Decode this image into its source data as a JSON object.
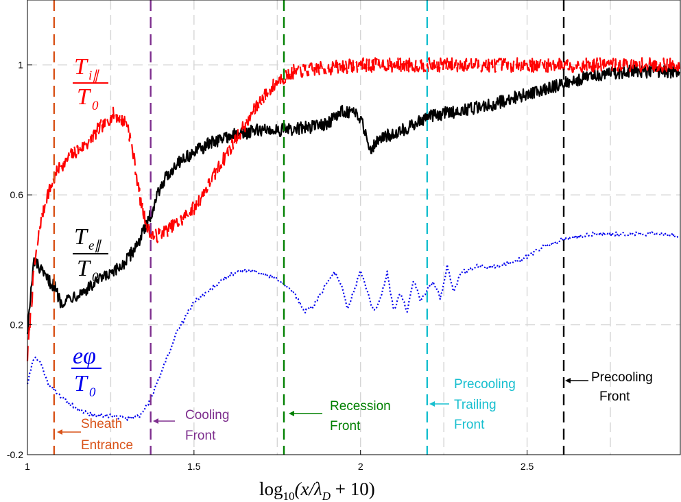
{
  "colors": {
    "ti": "#ff0000",
    "te": "#000000",
    "phi": "#0000ee",
    "sheath": "#d95319",
    "cooling": "#7e2f8e",
    "recession": "#008000",
    "trailing": "#17bfcf",
    "precooling": "#000000",
    "grid": "#d6d6d6"
  },
  "chart_data": {
    "type": "line",
    "xlabel": "log₁₀(x/λ_D + 10)",
    "ylabel": "",
    "xlim": [
      1,
      2.96
    ],
    "ylim": [
      -0.2,
      1.2
    ],
    "xticks": [
      {
        "value": 1,
        "label": "1"
      },
      {
        "value": 1.5,
        "label": "1.5"
      },
      {
        "value": 2,
        "label": "2"
      },
      {
        "value": 2.5,
        "label": "2.5"
      }
    ],
    "yticks": [
      {
        "value": -0.2,
        "label": "-0.2"
      },
      {
        "value": 0.2,
        "label": "0.2"
      },
      {
        "value": 0.6,
        "label": "0.6"
      },
      {
        "value": 1.0,
        "label": "1"
      }
    ],
    "grid": true,
    "series": [
      {
        "name": "T_i∥/T_0",
        "style": "dashed",
        "color": "#ff0000",
        "noise": 0.022,
        "x": [
          1.0,
          1.02,
          1.04,
          1.06,
          1.08,
          1.1,
          1.14,
          1.18,
          1.22,
          1.26,
          1.3,
          1.32,
          1.34,
          1.36,
          1.38,
          1.42,
          1.46,
          1.5,
          1.55,
          1.6,
          1.65,
          1.7,
          1.75,
          1.8,
          1.9,
          2.0,
          2.2,
          2.4,
          2.6,
          2.8,
          2.96
        ],
        "y": [
          0.1,
          0.37,
          0.52,
          0.6,
          0.65,
          0.69,
          0.73,
          0.76,
          0.81,
          0.85,
          0.82,
          0.71,
          0.58,
          0.5,
          0.47,
          0.49,
          0.52,
          0.56,
          0.64,
          0.73,
          0.81,
          0.89,
          0.95,
          0.98,
          0.99,
          1.0,
          1.0,
          1.0,
          1.0,
          1.0,
          1.0
        ]
      },
      {
        "name": "T_e∥/T_0",
        "style": "solid",
        "color": "#000000",
        "noise": 0.02,
        "x": [
          1.0,
          1.02,
          1.05,
          1.08,
          1.1,
          1.14,
          1.18,
          1.22,
          1.26,
          1.3,
          1.33,
          1.36,
          1.4,
          1.45,
          1.5,
          1.55,
          1.6,
          1.7,
          1.8,
          1.9,
          1.95,
          2.0,
          2.03,
          2.05,
          2.1,
          2.15,
          2.2,
          2.25,
          2.3,
          2.4,
          2.5,
          2.6,
          2.7,
          2.8,
          2.9,
          2.96
        ],
        "y": [
          0.18,
          0.4,
          0.35,
          0.32,
          0.27,
          0.29,
          0.31,
          0.34,
          0.36,
          0.4,
          0.45,
          0.51,
          0.63,
          0.7,
          0.73,
          0.76,
          0.78,
          0.8,
          0.8,
          0.82,
          0.86,
          0.84,
          0.74,
          0.77,
          0.79,
          0.81,
          0.84,
          0.85,
          0.86,
          0.88,
          0.91,
          0.94,
          0.97,
          0.98,
          0.98,
          0.98
        ]
      },
      {
        "name": "eφ/T_0",
        "style": "dotted",
        "color": "#0000ee",
        "noise": 0.006,
        "x": [
          1.0,
          1.02,
          1.04,
          1.06,
          1.1,
          1.15,
          1.2,
          1.25,
          1.3,
          1.34,
          1.37,
          1.4,
          1.45,
          1.5,
          1.55,
          1.6,
          1.65,
          1.7,
          1.75,
          1.8,
          1.83,
          1.86,
          1.9,
          1.92,
          1.94,
          1.96,
          1.98,
          2.0,
          2.02,
          2.04,
          2.06,
          2.08,
          2.1,
          2.12,
          2.14,
          2.16,
          2.18,
          2.2,
          2.22,
          2.24,
          2.26,
          2.28,
          2.3,
          2.35,
          2.4,
          2.45,
          2.5,
          2.55,
          2.6,
          2.7,
          2.8,
          2.9,
          2.96
        ],
        "y": [
          0.02,
          0.1,
          0.08,
          0.02,
          -0.02,
          -0.06,
          -0.08,
          -0.08,
          -0.09,
          -0.08,
          -0.03,
          0.05,
          0.18,
          0.27,
          0.31,
          0.35,
          0.37,
          0.36,
          0.34,
          0.3,
          0.24,
          0.26,
          0.33,
          0.36,
          0.33,
          0.25,
          0.3,
          0.37,
          0.3,
          0.24,
          0.28,
          0.36,
          0.24,
          0.3,
          0.24,
          0.34,
          0.27,
          0.31,
          0.33,
          0.28,
          0.38,
          0.3,
          0.36,
          0.38,
          0.38,
          0.39,
          0.41,
          0.44,
          0.46,
          0.48,
          0.48,
          0.48,
          0.47
        ]
      }
    ],
    "vlines": [
      {
        "name": "Sheath Entrance",
        "x": 1.08,
        "color": "#d95319"
      },
      {
        "name": "Cooling Front",
        "x": 1.37,
        "color": "#7e2f8e"
      },
      {
        "name": "Recession Front",
        "x": 1.77,
        "color": "#008000"
      },
      {
        "name": "Precooling Trailing Front",
        "x": 2.2,
        "color": "#17bfcf"
      },
      {
        "name": "Precooling Front",
        "x": 2.61,
        "color": "#000000"
      }
    ],
    "annotations": {
      "sheath": [
        "Sheath",
        "Entrance"
      ],
      "cooling": [
        "Cooling",
        "Front"
      ],
      "recession": [
        "Recession",
        "Front"
      ],
      "trailing": [
        "Precooling",
        "Trailing",
        "Front"
      ],
      "precooling": [
        "Precooling",
        "Front"
      ]
    },
    "curve_labels": {
      "ti_num_main": "T",
      "ti_num_sub": "i∥",
      "te_num_main": "T",
      "te_num_sub": "e∥",
      "phi_num": "eφ",
      "den_main": "T",
      "den_sub": "0"
    },
    "xlabel_parts": {
      "log": "log",
      "sub": "10",
      "arg": "(x/λ",
      "arg_sub": "D",
      "rest": " + 10)"
    }
  }
}
